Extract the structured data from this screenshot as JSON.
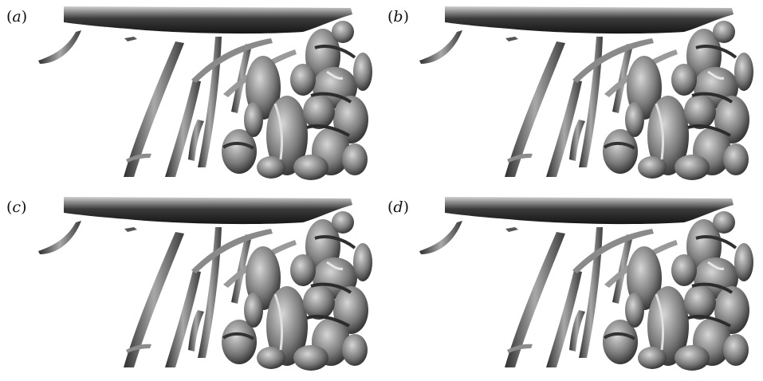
{
  "panels": [
    {
      "id": "a",
      "label_open": "(",
      "label_letter": "a",
      "label_close": ")"
    },
    {
      "id": "b",
      "label_open": "(",
      "label_letter": "b",
      "label_close": ")"
    },
    {
      "id": "c",
      "label_open": "(",
      "label_letter": "c",
      "label_close": ")"
    },
    {
      "id": "d",
      "label_open": "(",
      "label_letter": "d",
      "label_close": ")"
    }
  ],
  "colors": {
    "background": "#ffffff",
    "surface_dark": "#2a2a2a",
    "surface_mid": "#6e6e6e",
    "surface_light": "#b4b4b4"
  }
}
